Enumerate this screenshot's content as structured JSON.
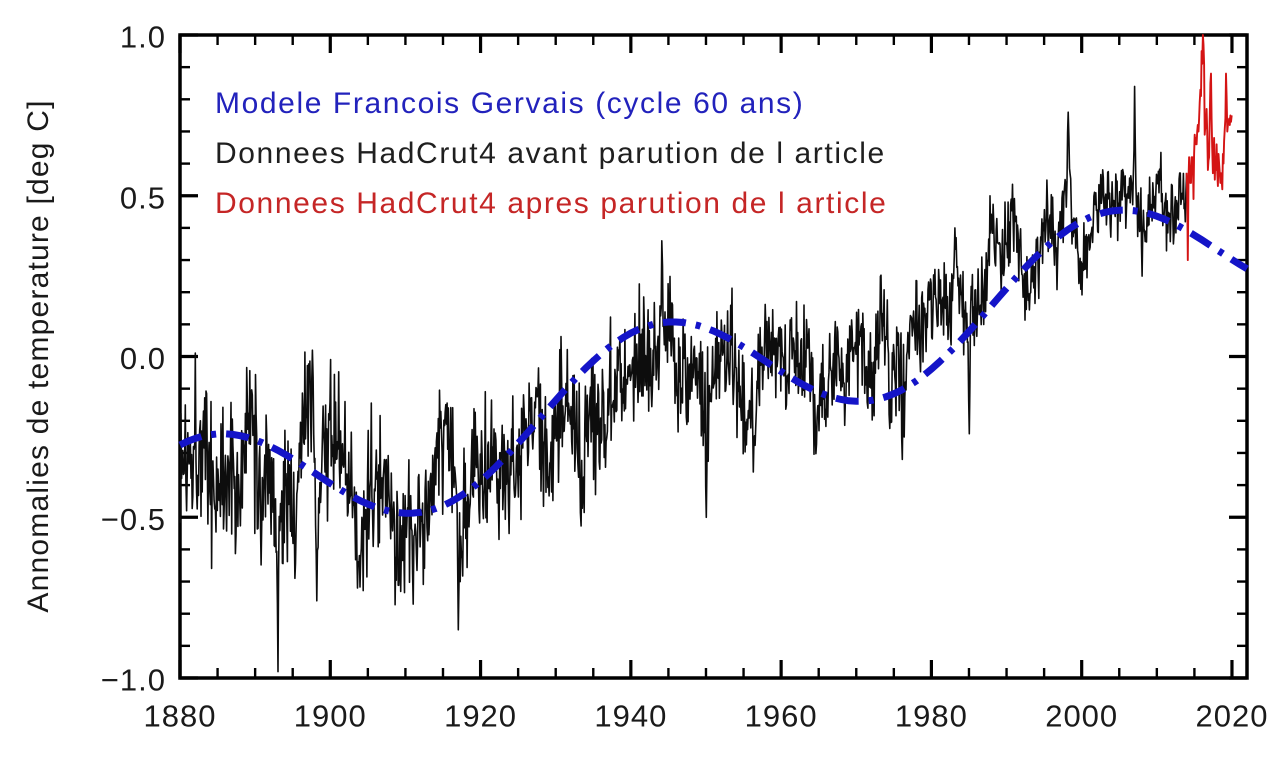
{
  "figure": {
    "background": "#ffffff",
    "legend": [
      {
        "label": "Modele Francois Gervais (cycle 60 ans)",
        "color": "#2222bc"
      },
      {
        "label": "Donnees HadCrut4 avant parution de l article",
        "color": "#1f1f1f"
      },
      {
        "label": "Donnees HadCrut4 apres parution de l article",
        "color": "#c52626"
      }
    ]
  },
  "chart_data": {
    "type": "line",
    "title": "",
    "xlabel": "",
    "ylabel": "Annomalies de temperature [deg C]",
    "xlim": [
      1880,
      2022
    ],
    "ylim": [
      -1.0,
      1.0
    ],
    "grid": false,
    "x_major_ticks": [
      1880,
      1900,
      1920,
      1940,
      1960,
      1980,
      2000,
      2020
    ],
    "x_minor_step": 5,
    "y_major_ticks": [
      -1.0,
      -0.5,
      0.0,
      0.5,
      1.0
    ],
    "y_tick_labels": [
      "−1.0",
      "−0.5",
      "0.0",
      "0.5",
      "1.0"
    ],
    "y_minor_step": 0.1,
    "legend_position": "top-left-inside",
    "series": [
      {
        "name": "Modele Francois Gervais (cycle 60 ans)",
        "type": "model-curve",
        "color": "#1414c8",
        "style": "dash-dot",
        "model": {
          "form": "linear_plus_cosine",
          "base": -0.103,
          "slope_per_year": 0.0058,
          "ref_year": 1943,
          "amplitude": 0.203,
          "period_years": 60,
          "range": [
            1880,
            2022
          ]
        },
        "anchor_points": [
          [
            1880,
            -0.27
          ],
          [
            1895,
            -0.43
          ],
          [
            1910,
            -0.49
          ],
          [
            1925,
            -0.3
          ],
          [
            1943,
            0.1
          ],
          [
            1955,
            -0.01
          ],
          [
            1970,
            -0.14
          ],
          [
            1980,
            -0.05
          ],
          [
            1990,
            0.21
          ],
          [
            2005,
            0.46
          ],
          [
            2014,
            0.4
          ],
          [
            2022,
            0.27
          ]
        ]
      },
      {
        "name": "Donnees HadCrut4 avant parution de l article",
        "type": "monthly-trace",
        "color": "#0d0d0d",
        "resolution": "monthly (annual means listed, monthly scatter synthesized)",
        "year_start": 1880,
        "year_end": 2013,
        "annual_values": [
          -0.32,
          -0.25,
          -0.24,
          -0.3,
          -0.41,
          -0.39,
          -0.32,
          -0.42,
          -0.32,
          -0.18,
          -0.44,
          -0.33,
          -0.45,
          -0.46,
          -0.4,
          -0.42,
          -0.19,
          -0.18,
          -0.42,
          -0.25,
          -0.23,
          -0.3,
          -0.43,
          -0.51,
          -0.55,
          -0.4,
          -0.32,
          -0.51,
          -0.56,
          -0.56,
          -0.55,
          -0.57,
          -0.45,
          -0.44,
          -0.29,
          -0.19,
          -0.42,
          -0.54,
          -0.42,
          -0.33,
          -0.3,
          -0.25,
          -0.38,
          -0.33,
          -0.36,
          -0.27,
          -0.14,
          -0.25,
          -0.24,
          -0.39,
          -0.18,
          -0.15,
          -0.19,
          -0.32,
          -0.17,
          -0.22,
          -0.18,
          -0.04,
          -0.04,
          -0.05,
          0.03,
          0.04,
          0.0,
          0.01,
          0.15,
          0.07,
          -0.08,
          -0.06,
          -0.07,
          -0.11,
          -0.17,
          -0.02,
          0.02,
          0.07,
          -0.12,
          -0.15,
          -0.21,
          0.04,
          0.06,
          0.03,
          -0.05,
          0.05,
          0.02,
          0.05,
          -0.21,
          -0.11,
          -0.05,
          -0.03,
          -0.08,
          0.03,
          0.03,
          -0.1,
          0.0,
          0.16,
          -0.08,
          -0.02,
          -0.11,
          0.18,
          0.07,
          0.16,
          0.18,
          0.24,
          0.14,
          0.31,
          0.11,
          0.12,
          0.18,
          0.32,
          0.39,
          0.29,
          0.44,
          0.41,
          0.22,
          0.23,
          0.31,
          0.45,
          0.32,
          0.47,
          0.53,
          0.31,
          0.29,
          0.44,
          0.5,
          0.51,
          0.45,
          0.54,
          0.5,
          0.48,
          0.39,
          0.51,
          0.56,
          0.42,
          0.47,
          0.5
        ],
        "monthly_extremes": [
          [
            1893.0,
            -0.98
          ],
          [
            1895.3,
            -0.69
          ],
          [
            1898.2,
            -0.76
          ],
          [
            1903.6,
            -0.72
          ],
          [
            1911.0,
            -0.77
          ],
          [
            1917.0,
            -0.85
          ],
          [
            1944.1,
            0.36
          ],
          [
            1950.0,
            -0.5
          ],
          [
            1976.1,
            -0.32
          ],
          [
            1983.1,
            0.4
          ],
          [
            1985.0,
            -0.24
          ],
          [
            1998.2,
            0.76
          ],
          [
            2007.05,
            0.84
          ],
          [
            2008.05,
            0.25
          ]
        ],
        "monthly_scatter_amplitude": [
          0.225,
          0.095
        ]
      },
      {
        "name": "Donnees HadCrut4 apres parution de l article",
        "type": "monthly-trace",
        "color": "#d41414",
        "resolution": "monthly",
        "start_year": 2014.0,
        "monthly_values": [
          0.51,
          0.3,
          0.55,
          0.62,
          0.58,
          0.54,
          0.54,
          0.62,
          0.57,
          0.62,
          0.49,
          0.63,
          0.69,
          0.66,
          0.68,
          0.66,
          0.7,
          0.72,
          0.7,
          0.74,
          0.79,
          0.83,
          0.81,
          0.95,
          0.91,
          1.0,
          0.97,
          0.91,
          0.69,
          0.72,
          0.71,
          0.77,
          0.7,
          0.58,
          0.61,
          0.62,
          0.74,
          0.85,
          0.88,
          0.74,
          0.65,
          0.57,
          0.61,
          0.68,
          0.55,
          0.62,
          0.58,
          0.66,
          0.57,
          0.53,
          0.63,
          0.6,
          0.57,
          0.54,
          0.57,
          0.55,
          0.52,
          0.63,
          0.6,
          0.67,
          0.71,
          0.74,
          0.88,
          0.81,
          0.7,
          0.72,
          0.73,
          0.74,
          0.72,
          0.75,
          0.73,
          0.75
        ]
      }
    ]
  }
}
